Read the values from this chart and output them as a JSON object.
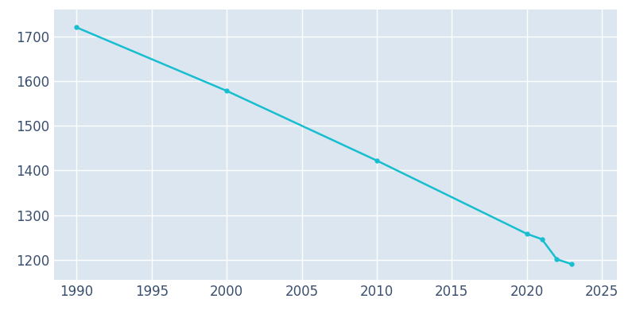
{
  "years": [
    1990,
    2000,
    2010,
    2020,
    2021,
    2022,
    2023
  ],
  "population": [
    1720,
    1578,
    1422,
    1258,
    1246,
    1201,
    1190
  ],
  "line_color": "#17becf",
  "marker_color": "#17becf",
  "background_color": "#ffffff",
  "axes_background": "#dce6f0",
  "grid_color": "#ffffff",
  "tick_color": "#3a4f6e",
  "xlim": [
    1988.5,
    2026
  ],
  "ylim": [
    1155,
    1760
  ],
  "xticks": [
    1990,
    1995,
    2000,
    2005,
    2010,
    2015,
    2020,
    2025
  ],
  "yticks": [
    1200,
    1300,
    1400,
    1500,
    1600,
    1700
  ],
  "marker": "o",
  "marker_size": 3.5,
  "line_width": 1.8,
  "tick_fontsize": 12
}
